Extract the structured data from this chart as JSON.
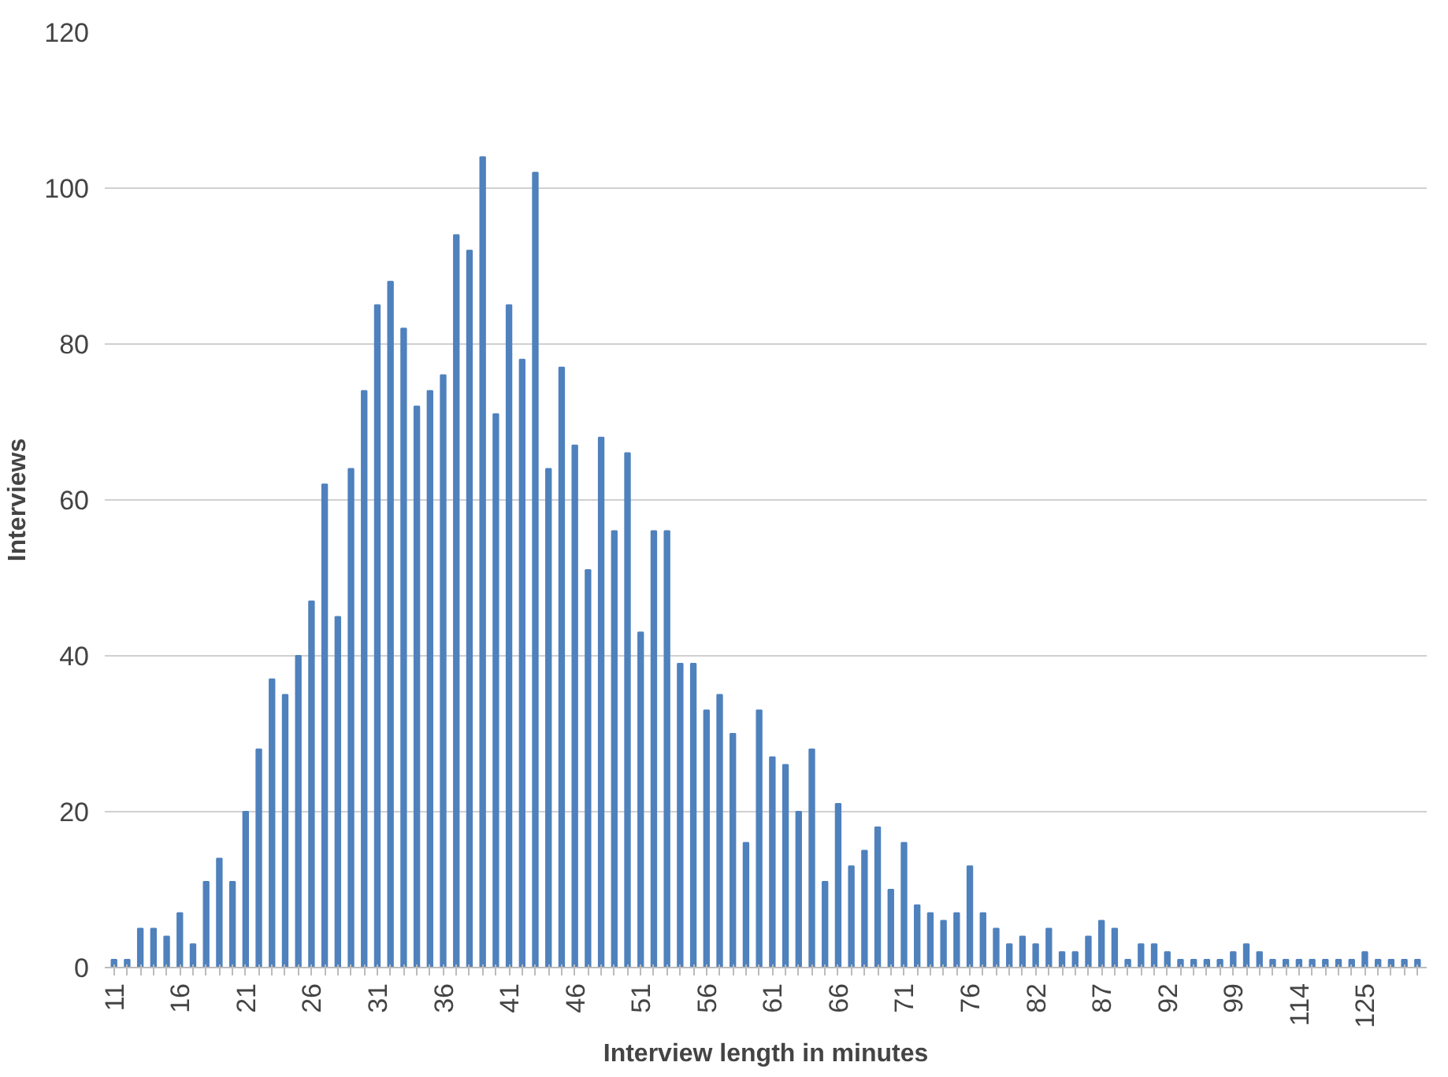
{
  "chart_data": {
    "type": "bar",
    "xlabel": "Interview length in minutes",
    "ylabel": "Interviews",
    "categories": [
      "11",
      null,
      null,
      null,
      null,
      "16",
      null,
      null,
      null,
      null,
      "21",
      null,
      null,
      null,
      null,
      "26",
      null,
      null,
      null,
      null,
      "31",
      null,
      null,
      null,
      null,
      "36",
      null,
      null,
      null,
      null,
      "41",
      null,
      null,
      null,
      null,
      "46",
      null,
      null,
      null,
      null,
      "51",
      null,
      null,
      null,
      null,
      "56",
      null,
      null,
      null,
      null,
      "61",
      null,
      null,
      null,
      null,
      "66",
      null,
      null,
      null,
      null,
      "71",
      null,
      null,
      null,
      null,
      "76",
      null,
      null,
      null,
      null,
      "82",
      null,
      null,
      null,
      null,
      "87",
      null,
      null,
      null,
      null,
      "92",
      null,
      null,
      null,
      null,
      "99",
      null,
      null,
      null,
      null,
      "114",
      null,
      null,
      null,
      null,
      "125",
      null,
      null,
      null,
      null
    ],
    "values": [
      1,
      1,
      5,
      5,
      4,
      7,
      3,
      11,
      14,
      11,
      20,
      28,
      37,
      35,
      40,
      47,
      62,
      45,
      64,
      74,
      85,
      88,
      82,
      72,
      74,
      76,
      94,
      92,
      104,
      71,
      85,
      78,
      102,
      64,
      77,
      67,
      51,
      68,
      56,
      66,
      43,
      56,
      56,
      39,
      39,
      33,
      35,
      30,
      16,
      33,
      27,
      26,
      20,
      28,
      11,
      21,
      13,
      15,
      18,
      10,
      16,
      8,
      7,
      6,
      7,
      13,
      7,
      5,
      3,
      4,
      3,
      5,
      2,
      2,
      4,
      6,
      5,
      1,
      3,
      3,
      2,
      1,
      1,
      1,
      1,
      2,
      3,
      2,
      1,
      1,
      1,
      1,
      1,
      1,
      1,
      2,
      1,
      1,
      1,
      1
    ],
    "color": "#4f81bd",
    "ylim": [
      0,
      120
    ],
    "yticks": [
      0,
      20,
      40,
      60,
      80,
      100,
      120
    ],
    "grid": "y"
  }
}
